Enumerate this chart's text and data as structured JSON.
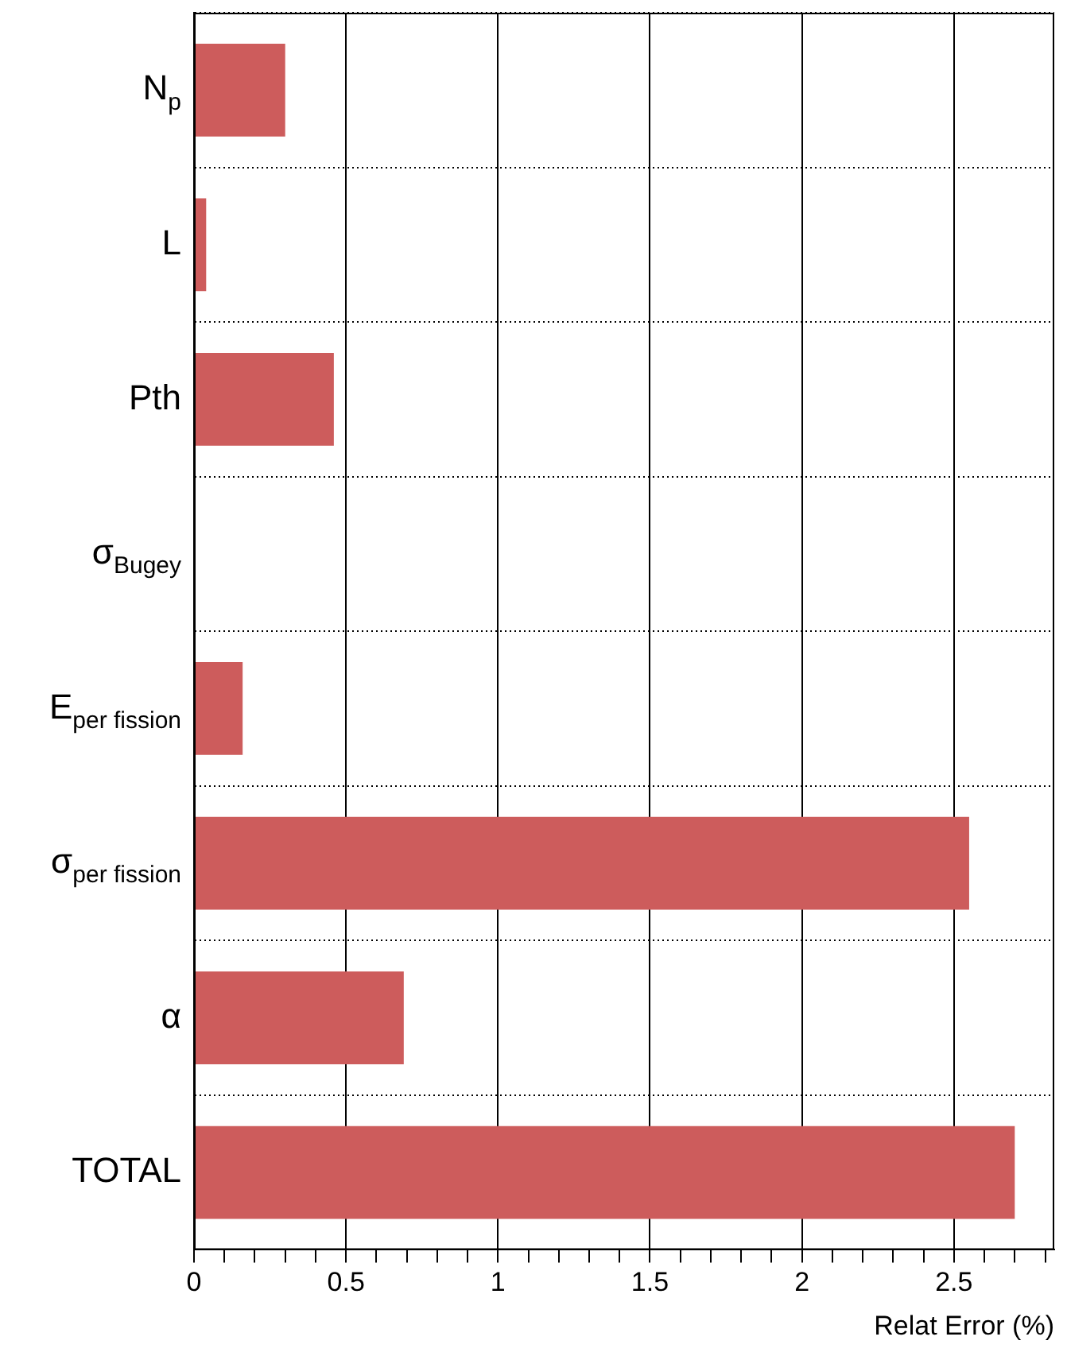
{
  "chart_data": {
    "type": "bar",
    "orientation": "horizontal",
    "xlabel": "Relat Error (%)",
    "categories": [
      "N$_{p}$",
      "L",
      "Pth",
      "σ$_{Bugey}$",
      "E$_{per fission}$",
      "σ$_{per fission}$",
      "α",
      "TOTAL"
    ],
    "values": [
      0.3,
      0.04,
      0.46,
      0,
      0.16,
      2.55,
      0.69,
      2.7
    ],
    "color": "#cd5c5c",
    "xlim": [
      0,
      2.83
    ],
    "xticks": [
      0,
      {
        "value": 0.1,
        "label": null
      },
      {
        "value": 0.2,
        "label": null
      },
      {
        "value": 0.3,
        "label": null
      },
      {
        "value": 0.4,
        "label": null
      },
      0.5,
      {
        "value": 0.6,
        "label": null
      },
      {
        "value": 0.7,
        "label": null
      },
      {
        "value": 0.8,
        "label": null
      },
      {
        "value": 0.9,
        "label": null
      },
      1,
      {
        "value": 1.1,
        "label": null
      },
      {
        "value": 1.2,
        "label": null
      },
      {
        "value": 1.3,
        "label": null
      },
      {
        "value": 1.4,
        "label": null
      },
      1.5,
      {
        "value": 1.6,
        "label": null
      },
      {
        "value": 1.7,
        "label": null
      },
      {
        "value": 1.8,
        "label": null
      },
      {
        "value": 1.9,
        "label": null
      },
      2,
      {
        "value": 2.1,
        "label": null
      },
      {
        "value": 2.2,
        "label": null
      },
      {
        "value": 2.3,
        "label": null
      },
      {
        "value": 2.4,
        "label": null
      },
      2.5,
      {
        "value": 2.6,
        "label": null
      },
      {
        "value": 2.7,
        "label": null
      },
      {
        "value": 2.8,
        "label": null
      }
    ],
    "grid": true
  }
}
